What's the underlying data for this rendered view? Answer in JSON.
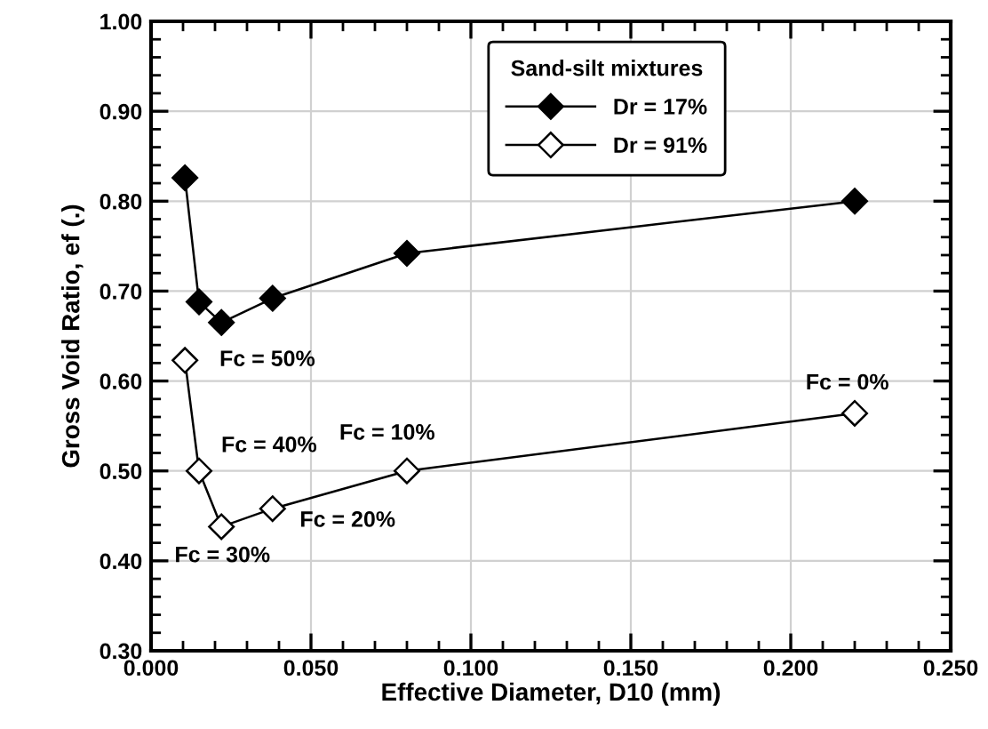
{
  "chart_data": {
    "type": "line",
    "xlabel": "Effective Diameter, D10 (mm)",
    "ylabel": "Gross Void Ratio, ef (.)",
    "legend_title": "Sand-silt mixtures",
    "legend": "top",
    "grid": true,
    "line_style": "solid",
    "xlim": [
      0,
      0.25
    ],
    "ylim": [
      0.3,
      1.0
    ],
    "xticks": [
      {
        "value": 0,
        "label": "0.000"
      },
      {
        "value": 0.05,
        "label": "0.050"
      },
      {
        "value": 0.1,
        "label": "0.100"
      },
      {
        "value": 0.15,
        "label": "0.150"
      },
      {
        "value": 0.2,
        "label": "0.200"
      },
      {
        "value": 0.25,
        "label": "0.250"
      }
    ],
    "yticks": [
      {
        "value": 0.3,
        "label": "0.30"
      },
      {
        "value": 0.4,
        "label": "0.40"
      },
      {
        "value": 0.5,
        "label": "0.50"
      },
      {
        "value": 0.6,
        "label": "0.60"
      },
      {
        "value": 0.7,
        "label": "0.70"
      },
      {
        "value": 0.8,
        "label": "0.80"
      },
      {
        "value": 0.9,
        "label": "0.90"
      },
      {
        "value": 1.0,
        "label": "1.00"
      }
    ],
    "series": [
      {
        "name": "Dr = 17%",
        "color": "#000000",
        "marker": "diamond",
        "x": [
          0.0106,
          0.015,
          0.022,
          0.038,
          0.08,
          0.22
        ],
        "values": [
          0.826,
          0.688,
          0.665,
          0.692,
          0.742,
          0.8
        ]
      },
      {
        "name": "Dr = 91%",
        "color": "#000000",
        "marker": "diamond",
        "x": [
          0.0106,
          0.015,
          0.022,
          0.038,
          0.08,
          0.22
        ],
        "values": [
          0.623,
          0.5,
          0.438,
          0.458,
          0.5,
          0.564
        ]
      }
    ],
    "annotations": [
      {
        "text": "Fc = 50%",
        "x": 0.0106,
        "y": 0.623
      },
      {
        "text": "Fc = 40%",
        "x": 0.015,
        "y": 0.5
      },
      {
        "text": "Fc = 30%",
        "x": 0.022,
        "y": 0.438
      },
      {
        "text": "Fc = 20%",
        "x": 0.038,
        "y": 0.458
      },
      {
        "text": "Fc = 10%",
        "x": 0.08,
        "y": 0.5
      },
      {
        "text": "Fc = 0%",
        "x": 0.22,
        "y": 0.564
      }
    ]
  }
}
